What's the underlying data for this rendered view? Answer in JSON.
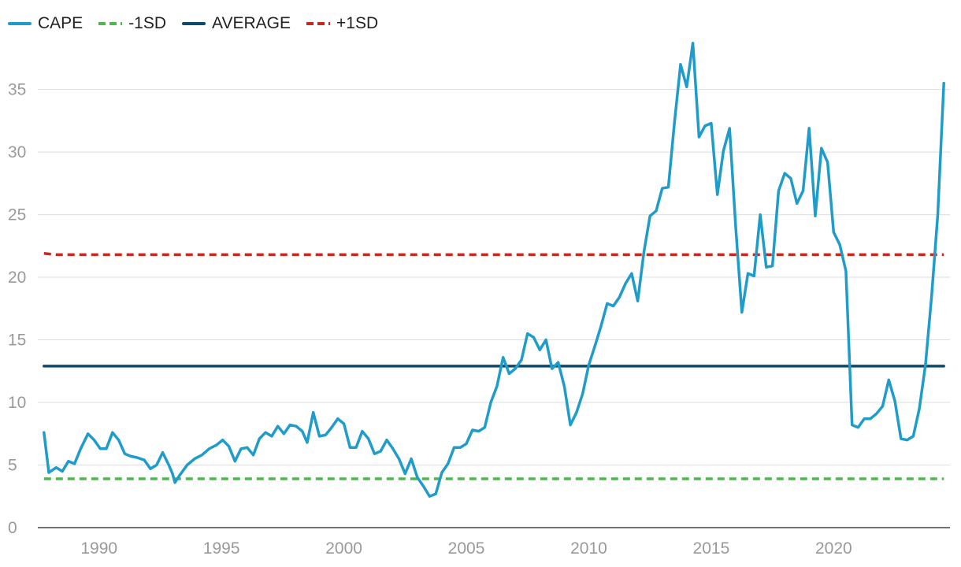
{
  "chart_data": {
    "type": "line",
    "title": "",
    "xlabel": "",
    "ylabel": "",
    "xlim": [
      1987.5,
      2024.75
    ],
    "ylim": [
      0,
      39
    ],
    "x_ticks": [
      1990,
      1995,
      2000,
      2005,
      2010,
      2015,
      2020
    ],
    "y_ticks": [
      0,
      5,
      10,
      15,
      20,
      25,
      30,
      35
    ],
    "grid": true,
    "legend_position": "top-left",
    "legend": [
      {
        "key": "cape",
        "label": "CAPE",
        "color": "#1f9cc9",
        "dash": "solid"
      },
      {
        "key": "minus1sd",
        "label": "-1SD",
        "color": "#4cba4a",
        "dash": "dashed"
      },
      {
        "key": "average",
        "label": "AVERAGE",
        "color": "#0c4a6e",
        "dash": "solid"
      },
      {
        "key": "plus1sd",
        "label": "+1SD",
        "color": "#c8281e",
        "dash": "dashed"
      }
    ],
    "series": [
      {
        "key": "cape",
        "name": "CAPE",
        "points": [
          [
            1987.75,
            7.6
          ],
          [
            1987.95,
            4.4
          ],
          [
            1988.25,
            4.8
          ],
          [
            1988.5,
            4.5
          ],
          [
            1988.75,
            5.3
          ],
          [
            1989.0,
            5.1
          ],
          [
            1989.25,
            6.3
          ],
          [
            1989.55,
            7.5
          ],
          [
            1989.8,
            7.0
          ],
          [
            1990.05,
            6.3
          ],
          [
            1990.3,
            6.3
          ],
          [
            1990.55,
            7.6
          ],
          [
            1990.8,
            7.0
          ],
          [
            1991.05,
            5.9
          ],
          [
            1991.3,
            5.7
          ],
          [
            1991.55,
            5.6
          ],
          [
            1991.85,
            5.4
          ],
          [
            1992.1,
            4.7
          ],
          [
            1992.35,
            5.0
          ],
          [
            1992.6,
            6.0
          ],
          [
            1992.85,
            5.0
          ],
          [
            1993.0,
            4.3
          ],
          [
            1993.1,
            3.6
          ],
          [
            1993.3,
            4.2
          ],
          [
            1993.6,
            5.0
          ],
          [
            1993.9,
            5.5
          ],
          [
            1994.2,
            5.8
          ],
          [
            1994.5,
            6.3
          ],
          [
            1994.8,
            6.6
          ],
          [
            1995.05,
            7.0
          ],
          [
            1995.3,
            6.5
          ],
          [
            1995.55,
            5.3
          ],
          [
            1995.8,
            6.3
          ],
          [
            1996.05,
            6.4
          ],
          [
            1996.3,
            5.8
          ],
          [
            1996.55,
            7.1
          ],
          [
            1996.8,
            7.6
          ],
          [
            1997.05,
            7.3
          ],
          [
            1997.3,
            8.1
          ],
          [
            1997.55,
            7.5
          ],
          [
            1997.8,
            8.2
          ],
          [
            1998.05,
            8.1
          ],
          [
            1998.3,
            7.7
          ],
          [
            1998.5,
            6.8
          ],
          [
            1998.75,
            9.2
          ],
          [
            1999.0,
            7.3
          ],
          [
            1999.25,
            7.4
          ],
          [
            1999.5,
            8.0
          ],
          [
            1999.75,
            8.7
          ],
          [
            2000.0,
            8.3
          ],
          [
            2000.25,
            6.4
          ],
          [
            2000.5,
            6.4
          ],
          [
            2000.75,
            7.7
          ],
          [
            2001.0,
            7.1
          ],
          [
            2001.25,
            5.9
          ],
          [
            2001.5,
            6.1
          ],
          [
            2001.75,
            7.0
          ],
          [
            2002.0,
            6.3
          ],
          [
            2002.25,
            5.5
          ],
          [
            2002.5,
            4.3
          ],
          [
            2002.75,
            5.5
          ],
          [
            2003.0,
            4.0
          ],
          [
            2003.25,
            3.3
          ],
          [
            2003.5,
            2.5
          ],
          [
            2003.75,
            2.7
          ],
          [
            2004.0,
            4.4
          ],
          [
            2004.25,
            5.1
          ],
          [
            2004.5,
            6.4
          ],
          [
            2004.75,
            6.4
          ],
          [
            2005.0,
            6.7
          ],
          [
            2005.25,
            7.8
          ],
          [
            2005.5,
            7.7
          ],
          [
            2005.75,
            8.0
          ],
          [
            2006.0,
            10.0
          ],
          [
            2006.25,
            11.3
          ],
          [
            2006.5,
            13.6
          ],
          [
            2006.75,
            12.3
          ],
          [
            2007.0,
            12.7
          ],
          [
            2007.25,
            13.4
          ],
          [
            2007.5,
            15.5
          ],
          [
            2007.75,
            15.2
          ],
          [
            2008.0,
            14.2
          ],
          [
            2008.25,
            15.0
          ],
          [
            2008.5,
            12.7
          ],
          [
            2008.75,
            13.2
          ],
          [
            2009.0,
            11.3
          ],
          [
            2009.25,
            8.2
          ],
          [
            2009.5,
            9.2
          ],
          [
            2009.75,
            10.7
          ],
          [
            2010.0,
            13.0
          ],
          [
            2010.25,
            14.5
          ],
          [
            2010.5,
            16.1
          ],
          [
            2010.75,
            17.9
          ],
          [
            2011.0,
            17.7
          ],
          [
            2011.25,
            18.4
          ],
          [
            2011.5,
            19.5
          ],
          [
            2011.75,
            20.3
          ],
          [
            2012.0,
            18.1
          ],
          [
            2012.25,
            22.0
          ],
          [
            2012.5,
            24.9
          ],
          [
            2012.75,
            25.3
          ],
          [
            2013.0,
            27.1
          ],
          [
            2013.25,
            27.2
          ],
          [
            2013.5,
            32.4
          ],
          [
            2013.75,
            37.0
          ],
          [
            2014.0,
            35.2
          ],
          [
            2014.25,
            38.7
          ],
          [
            2014.5,
            31.2
          ],
          [
            2014.75,
            32.1
          ],
          [
            2015.0,
            32.3
          ],
          [
            2015.25,
            26.6
          ],
          [
            2015.5,
            30.1
          ],
          [
            2015.75,
            31.9
          ],
          [
            2016.0,
            24.0
          ],
          [
            2016.25,
            17.2
          ],
          [
            2016.5,
            20.3
          ],
          [
            2016.75,
            20.1
          ],
          [
            2017.0,
            25.0
          ],
          [
            2017.25,
            20.8
          ],
          [
            2017.5,
            20.9
          ],
          [
            2017.75,
            26.9
          ],
          [
            2018.0,
            28.3
          ],
          [
            2018.25,
            27.9
          ],
          [
            2018.5,
            25.9
          ],
          [
            2018.75,
            26.9
          ],
          [
            2019.0,
            31.9
          ],
          [
            2019.25,
            24.9
          ],
          [
            2019.5,
            30.3
          ],
          [
            2019.75,
            29.2
          ],
          [
            2020.0,
            23.6
          ],
          [
            2020.25,
            22.6
          ],
          [
            2020.5,
            20.5
          ],
          [
            2020.75,
            8.2
          ],
          [
            2021.0,
            8.0
          ],
          [
            2021.25,
            8.7
          ],
          [
            2021.5,
            8.7
          ],
          [
            2021.75,
            9.1
          ],
          [
            2022.0,
            9.7
          ],
          [
            2022.25,
            11.8
          ],
          [
            2022.5,
            10.1
          ],
          [
            2022.75,
            7.1
          ],
          [
            2023.0,
            7.0
          ],
          [
            2023.25,
            7.3
          ],
          [
            2023.5,
            9.5
          ],
          [
            2023.75,
            13.0
          ],
          [
            2024.0,
            18.5
          ],
          [
            2024.25,
            25.0
          ],
          [
            2024.5,
            35.5
          ]
        ]
      },
      {
        "key": "minus1sd",
        "name": "-1SD",
        "points": [
          [
            1987.75,
            3.9
          ],
          [
            2024.5,
            3.9
          ]
        ]
      },
      {
        "key": "average",
        "name": "AVERAGE",
        "points": [
          [
            1987.75,
            12.9
          ],
          [
            2024.5,
            12.9
          ]
        ]
      },
      {
        "key": "plus1sd",
        "name": "+1SD",
        "points": [
          [
            1987.75,
            21.9
          ],
          [
            1988.25,
            21.8
          ],
          [
            2024.5,
            21.8
          ]
        ]
      }
    ]
  }
}
